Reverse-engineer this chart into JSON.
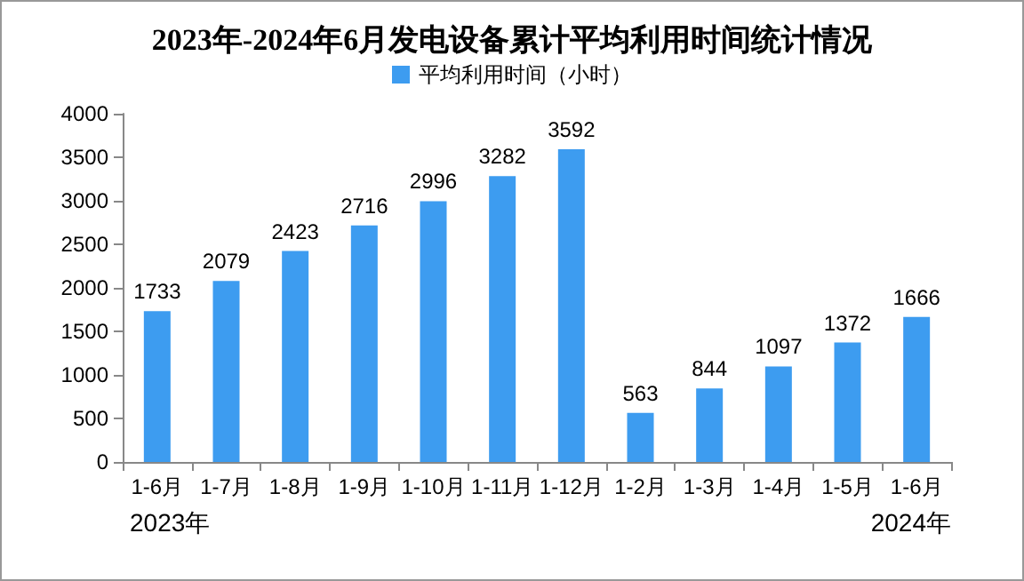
{
  "chart_data": {
    "type": "bar",
    "title": "2023年-2024年6月发电设备累计平均利用时间统计情况",
    "categories": [
      "1-6月",
      "1-7月",
      "1-8月",
      "1-9月",
      "1-10月",
      "1-11月",
      "1-12月",
      "1-2月",
      "1-3月",
      "1-4月",
      "1-5月",
      "1-6月"
    ],
    "series": [
      {
        "name": "平均利用时间（小时）",
        "color": "#3d9cf0",
        "values": [
          1733,
          2079,
          2423,
          2716,
          2996,
          3282,
          3592,
          563,
          844,
          1097,
          1372,
          1666
        ]
      }
    ],
    "ylim": [
      0,
      4000
    ],
    "yticks": [
      0,
      500,
      1000,
      1500,
      2000,
      2500,
      3000,
      3500,
      4000
    ],
    "grid": false,
    "legend": "top",
    "data_labels": true,
    "annotations": [
      "2023年",
      "2024年"
    ]
  }
}
